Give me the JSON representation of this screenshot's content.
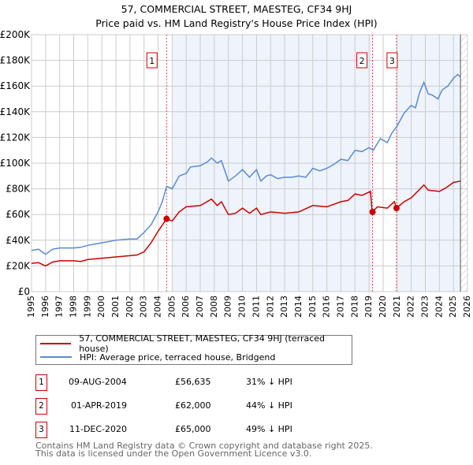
{
  "title": "57, COMMERCIAL STREET, MAESTEG, CF34 9HJ",
  "subtitle": "Price paid vs. HM Land Registry's House Price Index (HPI)",
  "chart_data": {
    "type": "line",
    "xlim": [
      1995,
      2026
    ],
    "ylim": [
      0,
      200000
    ],
    "x_ticks": [
      "1995",
      "1996",
      "1997",
      "1998",
      "1999",
      "2000",
      "2001",
      "2002",
      "2003",
      "2004",
      "2005",
      "2006",
      "2007",
      "2008",
      "2009",
      "2010",
      "2011",
      "2012",
      "2013",
      "2014",
      "2015",
      "2016",
      "2017",
      "2018",
      "2019",
      "2020",
      "2021",
      "2022",
      "2023",
      "2024",
      "2025",
      "2026"
    ],
    "y_ticks": [
      {
        "v": 0,
        "label": "£0"
      },
      {
        "v": 20000,
        "label": "£20K"
      },
      {
        "v": 40000,
        "label": "£40K"
      },
      {
        "v": 60000,
        "label": "£60K"
      },
      {
        "v": 80000,
        "label": "£80K"
      },
      {
        "v": 100000,
        "label": "£100K"
      },
      {
        "v": 120000,
        "label": "£120K"
      },
      {
        "v": 140000,
        "label": "£140K"
      },
      {
        "v": 160000,
        "label": "£160K"
      },
      {
        "v": 180000,
        "label": "£180K"
      },
      {
        "v": 200000,
        "label": "£200K"
      }
    ],
    "series": [
      {
        "name": "57, COMMERCIAL STREET, MAESTEG, CF34 9HJ (terraced house)",
        "color": "#cc0000",
        "x": [
          1995,
          1995.5,
          1996,
          1996.5,
          1997,
          1998,
          1998.5,
          1999,
          2000,
          2001,
          2002,
          2002.5,
          2003,
          2003.5,
          2004,
          2004.6,
          2005,
          2005.5,
          2006,
          2007,
          2007.8,
          2008.2,
          2008.5,
          2009,
          2009.5,
          2010,
          2010.5,
          2011,
          2011.3,
          2012,
          2013,
          2014,
          2015,
          2016,
          2017,
          2017.5,
          2018,
          2018.5,
          2019.1,
          2019.22,
          2019.6,
          2020.3,
          2020.8,
          2020.95,
          2021.5,
          2022,
          2022.9,
          2023.2,
          2024,
          2024.5,
          2025,
          2025.5
        ],
        "y": [
          22000,
          22500,
          20000,
          23000,
          24000,
          24000,
          23500,
          25000,
          26000,
          27000,
          28000,
          28500,
          31000,
          38000,
          47000,
          56635,
          55000,
          62000,
          66000,
          67000,
          72000,
          67000,
          70000,
          60000,
          61000,
          65000,
          61000,
          65000,
          60000,
          62000,
          61000,
          62000,
          67000,
          66000,
          70000,
          71000,
          76000,
          75000,
          78000,
          62000,
          66000,
          65000,
          70000,
          65000,
          70000,
          73000,
          83000,
          79000,
          78000,
          81000,
          85000,
          86000
        ]
      },
      {
        "name": "HPI: Average price, terraced house, Bridgend",
        "color": "#5b8bd0",
        "x": [
          1995,
          1995.5,
          1996,
          1996.5,
          1997,
          1998,
          1998.5,
          1999,
          2000,
          2001,
          2002,
          2002.5,
          2003,
          2003.5,
          2004,
          2004.3,
          2004.6,
          2005,
          2005.5,
          2006,
          2006.3,
          2007,
          2007.5,
          2007.8,
          2008.2,
          2008.5,
          2009,
          2009.5,
          2010,
          2010.5,
          2011,
          2011.3,
          2011.7,
          2012,
          2012.5,
          2013,
          2013.5,
          2014,
          2014.5,
          2015,
          2015.5,
          2016,
          2016.5,
          2017,
          2017.5,
          2018,
          2018.5,
          2019,
          2019.3,
          2019.8,
          2020.3,
          2020.6,
          2021,
          2021.5,
          2022,
          2022.3,
          2022.6,
          2022.9,
          2023.2,
          2023.5,
          2023.9,
          2024.2,
          2024.6,
          2025,
          2025.3,
          2025.5
        ],
        "y": [
          32000,
          33000,
          29000,
          33000,
          34000,
          34000,
          34500,
          36000,
          38000,
          40000,
          41000,
          41000,
          46000,
          52000,
          62000,
          70000,
          82000,
          80000,
          90000,
          92000,
          97000,
          98000,
          101000,
          104000,
          100000,
          102000,
          86000,
          90000,
          95000,
          89000,
          95000,
          86000,
          90000,
          91000,
          88000,
          89000,
          89000,
          90000,
          89000,
          96000,
          94000,
          96000,
          99000,
          103000,
          102000,
          110000,
          109000,
          112000,
          110000,
          119000,
          116000,
          123000,
          129000,
          139000,
          145000,
          143000,
          155000,
          163000,
          154000,
          153000,
          150000,
          157000,
          160000,
          166000,
          169000,
          167000
        ]
      }
    ],
    "sales": [
      {
        "label": "1",
        "x": 2004.6,
        "y": 56635
      },
      {
        "label": "2",
        "x": 2019.25,
        "y": 62000
      },
      {
        "label": "3",
        "x": 2020.95,
        "y": 65000
      }
    ]
  },
  "legend": {
    "red": "57, COMMERCIAL STREET, MAESTEG, CF34 9HJ (terraced house)",
    "blue": "HPI: Average price, terraced house, Bridgend"
  },
  "table": [
    {
      "n": "1",
      "date": "09-AUG-2004",
      "price": "£56,635",
      "hpi": "31% ↓ HPI"
    },
    {
      "n": "2",
      "date": "01-APR-2019",
      "price": "£62,000",
      "hpi": "44% ↓ HPI"
    },
    {
      "n": "3",
      "date": "11-DEC-2020",
      "price": "£65,000",
      "hpi": "49% ↓ HPI"
    }
  ],
  "footer": {
    "line1": "Contains HM Land Registry data © Crown copyright and database right 2025.",
    "line2": "This data is licensed under the Open Government Licence v3.0."
  }
}
